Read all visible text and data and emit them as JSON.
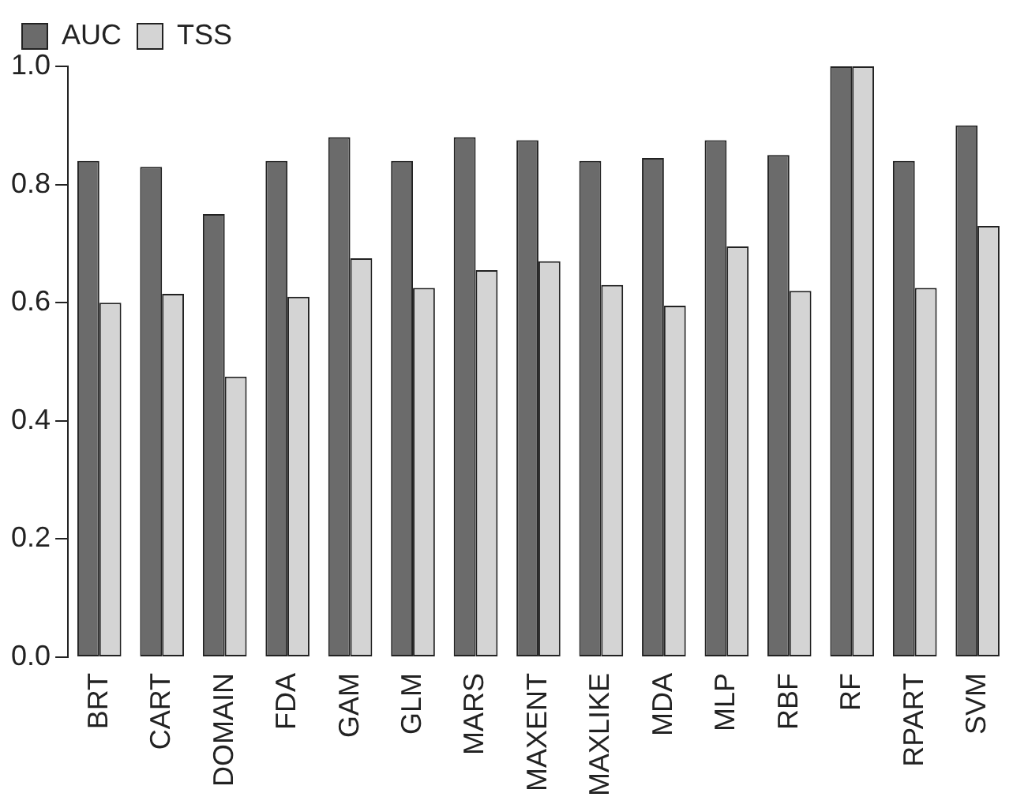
{
  "chart_data": {
    "type": "bar",
    "categories": [
      "BRT",
      "CART",
      "DOMAIN",
      "FDA",
      "GAM",
      "GLM",
      "MARS",
      "MAXENT",
      "MAXLIKE",
      "MDA",
      "MLP",
      "RBF",
      "RF",
      "RPART",
      "SVM"
    ],
    "series": [
      {
        "name": "AUC",
        "color": "#6b6b6b",
        "values": [
          0.84,
          0.83,
          0.75,
          0.84,
          0.88,
          0.84,
          0.88,
          0.875,
          0.84,
          0.845,
          0.875,
          0.85,
          1.0,
          0.84,
          0.9
        ]
      },
      {
        "name": "TSS",
        "color": "#d4d4d4",
        "values": [
          0.6,
          0.615,
          0.475,
          0.61,
          0.675,
          0.625,
          0.655,
          0.67,
          0.63,
          0.595,
          0.695,
          0.62,
          1.0,
          0.625,
          0.73
        ]
      }
    ],
    "ylim": [
      0,
      1
    ],
    "yticks": [
      {
        "value": 0,
        "label": "0.0"
      },
      {
        "value": 0.2,
        "label": "0.2"
      },
      {
        "value": 0.4,
        "label": "0.4"
      },
      {
        "value": 0.6,
        "label": "0.6"
      },
      {
        "value": 0.8,
        "label": "0.8"
      },
      {
        "value": 1,
        "label": "1.0"
      }
    ],
    "grid": false,
    "legend": "top left"
  }
}
